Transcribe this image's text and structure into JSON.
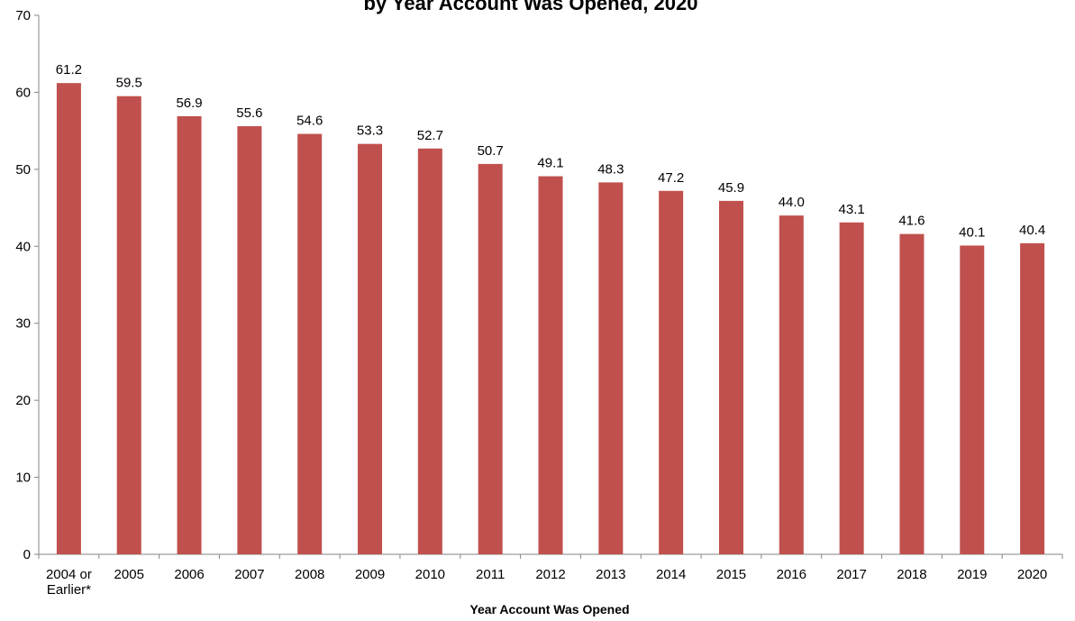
{
  "chart_data": {
    "type": "bar",
    "title": "by Year Account Was Opened, 2020",
    "xlabel": "Year Account Was Opened",
    "ylabel": "",
    "ylim": [
      0,
      70
    ],
    "yticks": [
      "0",
      "10",
      "20",
      "30",
      "40",
      "50",
      "60",
      "70"
    ],
    "categories": [
      [
        "2004 or",
        "Earlier*"
      ],
      [
        "2005"
      ],
      [
        "2006"
      ],
      [
        "2007"
      ],
      [
        "2008"
      ],
      [
        "2009"
      ],
      [
        "2010"
      ],
      [
        "2011"
      ],
      [
        "2012"
      ],
      [
        "2013"
      ],
      [
        "2014"
      ],
      [
        "2015"
      ],
      [
        "2016"
      ],
      [
        "2017"
      ],
      [
        "2018"
      ],
      [
        "2019"
      ],
      [
        "2020"
      ]
    ],
    "values": [
      61.2,
      59.5,
      56.9,
      55.6,
      54.6,
      53.3,
      52.7,
      50.7,
      49.1,
      48.3,
      47.2,
      45.9,
      44.0,
      43.1,
      41.6,
      40.1,
      40.4
    ],
    "value_labels": [
      "61.2",
      "59.5",
      "56.9",
      "55.6",
      "54.6",
      "53.3",
      "52.7",
      "50.7",
      "49.1",
      "48.3",
      "47.2",
      "45.9",
      "44.0",
      "43.1",
      "41.6",
      "40.1",
      "40.4"
    ],
    "bar_color": "#c0504d",
    "grid": false
  }
}
